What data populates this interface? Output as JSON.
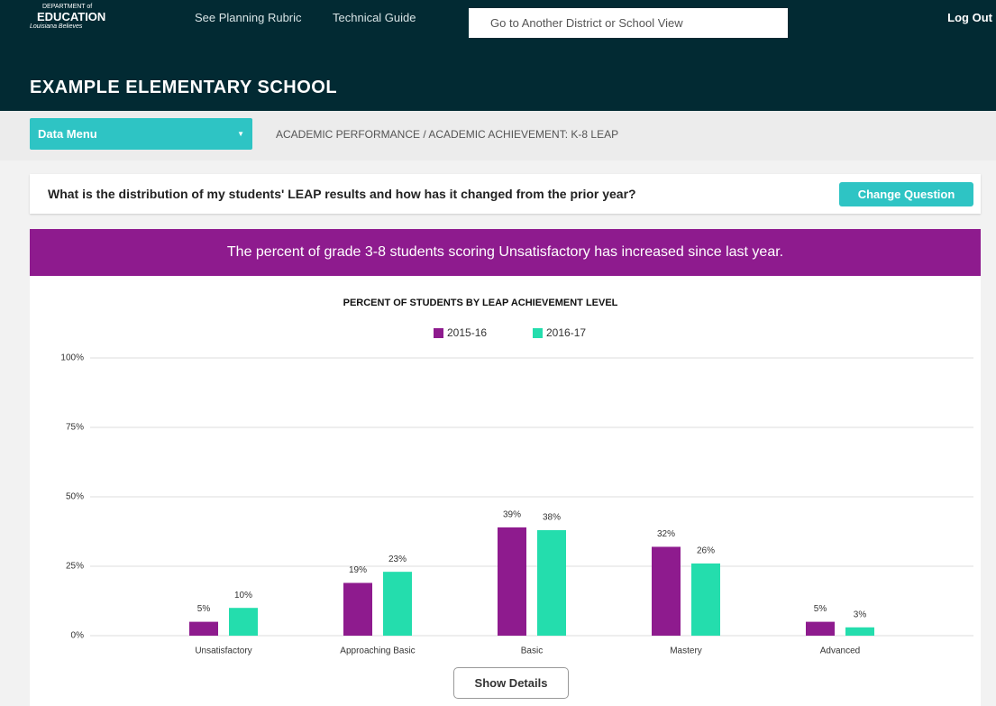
{
  "header": {
    "logo_top": "DEPARTMENT of",
    "logo_main": "EDUCATION",
    "logo_sub": "Louisiana Believes",
    "nav": [
      "See Planning Rubric",
      "Technical Guide"
    ],
    "search_placeholder": "Go to Another District or School View",
    "logout": "Log Out",
    "school": "EXAMPLE ELEMENTARY SCHOOL"
  },
  "toolbar": {
    "menu": "Data Menu",
    "breadcrumb": "ACADEMIC PERFORMANCE / ACADEMIC ACHIEVEMENT: K-8 LEAP"
  },
  "question": {
    "text": "What is the distribution of my students' LEAP results and how has it changed from the prior year?",
    "button": "Change Question"
  },
  "banner": "The percent of grade 3-8 students scoring Unsatisfactory has increased since last year.",
  "chart_data": {
    "type": "bar",
    "title": "PERCENT OF STUDENTS BY LEAP ACHIEVEMENT LEVEL",
    "categories": [
      "Unsatisfactory",
      "Approaching Basic",
      "Basic",
      "Mastery",
      "Advanced"
    ],
    "series": [
      {
        "name": "2015-16",
        "color": "#8e1b8e",
        "values": [
          5,
          19,
          39,
          32,
          5
        ],
        "value_labels": [
          "5%",
          "19%",
          "39%",
          "32%",
          "5%"
        ]
      },
      {
        "name": "2016-17",
        "color": "#24ddad",
        "values": [
          10,
          23,
          38,
          26,
          3
        ],
        "value_labels": [
          "10%",
          "23%",
          "38%",
          "26%",
          "3%"
        ]
      }
    ],
    "ylim": [
      0,
      100
    ],
    "yticks": [
      {
        "value": 0,
        "label": "0%"
      },
      {
        "value": 25,
        "label": "25%"
      },
      {
        "value": 50,
        "label": "50%"
      },
      {
        "value": 75,
        "label": "75%"
      },
      {
        "value": 100,
        "label": "100%"
      }
    ],
    "grid": true,
    "legend": "top"
  },
  "details_button": "Show Details"
}
